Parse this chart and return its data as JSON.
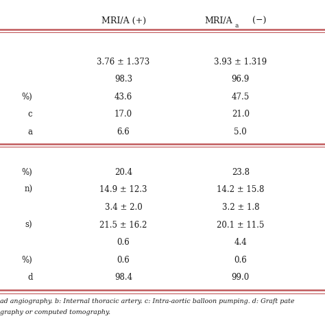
{
  "col1_label": "MRI/A (+)",
  "col2_label_main": "MRI/A",
  "col2_label_sub": "a",
  "col2_label_suffix": " (−)",
  "col1_vals": [
    "",
    "3.76 ± 1.373",
    "98.3",
    "43.6",
    "17.0",
    "6.6",
    "",
    "20.4",
    "14.9 ± 12.3",
    "3.4 ± 2.0",
    "21.5 ± 16.2",
    "0.6",
    "0.6",
    "98.4"
  ],
  "col2_vals": [
    "",
    "3.93 ± 1.319",
    "96.9",
    "47.5",
    "21.0",
    "5.0",
    "",
    "23.8",
    "14.2 ± 15.8",
    "3.2 ± 1.8",
    "20.1 ± 11.5",
    "4.4",
    "0.6",
    "99.0"
  ],
  "left_stubs": [
    "",
    "",
    "",
    "%)",
    "c",
    "a",
    "",
    "%)",
    "n)",
    "",
    "s)",
    "",
    "%)",
    "d"
  ],
  "footnote1": "ad angiography. b: Internal thoracic artery. c: Intra-aortic balloon pumping. d: Graft pate",
  "footnote2": "graphy or computed tomography.",
  "line_color": "#c0585a",
  "text_color": "#1a1a1a",
  "font_size": 8.5,
  "header_font_size": 9.0,
  "footnote_font_size": 6.8
}
